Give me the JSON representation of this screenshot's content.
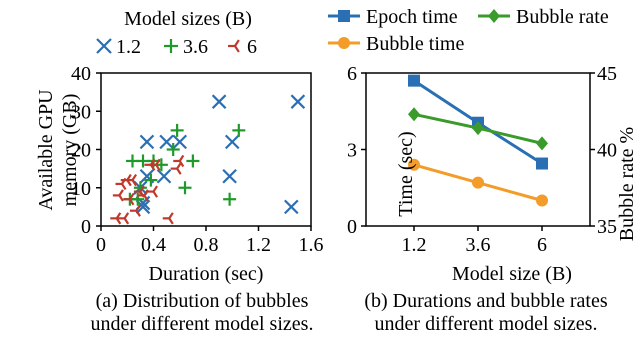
{
  "chart_data": [
    {
      "type": "scatter",
      "xlabel": "Duration (sec)",
      "ylabel": "Available GPU memory (GB)",
      "xlim": [
        0,
        1.6
      ],
      "ylim": [
        0,
        40
      ],
      "xticks": [
        "0",
        "0.4",
        "0.8",
        "1.2",
        "1.6"
      ],
      "yticks": [
        "0",
        "10",
        "20",
        "30",
        "40"
      ],
      "legend_title": "Model sizes (B)",
      "legend_position": "top",
      "series": [
        {
          "name": "1.2",
          "marker": "x",
          "color": "#2a6fb4",
          "points": [
            [
              0.32,
              5
            ],
            [
              0.32,
              6
            ],
            [
              0.35,
              13
            ],
            [
              0.35,
              22
            ],
            [
              0.3,
              10
            ],
            [
              0.48,
              13
            ],
            [
              0.5,
              22
            ],
            [
              0.6,
              22
            ],
            [
              0.9,
              32.5
            ],
            [
              0.98,
              13
            ],
            [
              1.0,
              22
            ],
            [
              1.45,
              5
            ],
            [
              1.5,
              32.5
            ]
          ]
        },
        {
          "name": "3.6",
          "marker": "plus",
          "color": "#1f9a2a",
          "points": [
            [
              0.22,
              7
            ],
            [
              0.24,
              17
            ],
            [
              0.28,
              7
            ],
            [
              0.3,
              10
            ],
            [
              0.32,
              17
            ],
            [
              0.38,
              12
            ],
            [
              0.4,
              17
            ],
            [
              0.46,
              16
            ],
            [
              0.55,
              20
            ],
            [
              0.58,
              25
            ],
            [
              0.64,
              10
            ],
            [
              0.7,
              17
            ],
            [
              0.98,
              7
            ],
            [
              1.05,
              25
            ]
          ]
        },
        {
          "name": "6",
          "marker": "tri_left",
          "color": "#c0392b",
          "points": [
            [
              0.12,
              2
            ],
            [
              0.14,
              8
            ],
            [
              0.16,
              11
            ],
            [
              0.18,
              2
            ],
            [
              0.2,
              12
            ],
            [
              0.22,
              7
            ],
            [
              0.24,
              12
            ],
            [
              0.27,
              4
            ],
            [
              0.3,
              9
            ],
            [
              0.33,
              8
            ],
            [
              0.38,
              16
            ],
            [
              0.4,
              9
            ],
            [
              0.42,
              16
            ],
            [
              0.52,
              2
            ],
            [
              0.58,
              15
            ],
            [
              0.6,
              17
            ]
          ]
        }
      ]
    },
    {
      "type": "line",
      "xlabel": "Model size (B)",
      "ylabel": "Time (sec)",
      "ylabel_right": "Bubble rate %",
      "categories": [
        "1.2",
        "3.6",
        "6"
      ],
      "ylim": [
        0,
        6
      ],
      "yticks": [
        "0",
        "3",
        "6"
      ],
      "ylim_right": [
        35,
        45
      ],
      "yticks_right": [
        "35",
        "40",
        "45"
      ],
      "legend_position": "top",
      "series": [
        {
          "name": "Epoch time",
          "axis": "left",
          "marker": "square",
          "color": "#2a6fb4",
          "values": [
            5.7,
            4.05,
            2.45
          ]
        },
        {
          "name": "Bubble rate",
          "axis": "right",
          "marker": "diamond",
          "color": "#3a9a2a",
          "values": [
            42.3,
            41.4,
            40.4
          ]
        },
        {
          "name": "Bubble time",
          "axis": "left",
          "marker": "circle",
          "color": "#f39c29",
          "values": [
            2.4,
            1.7,
            1.0
          ]
        }
      ]
    }
  ],
  "captions": {
    "a_line1": "(a) Distribution of bubbles",
    "a_line2": "under different model sizes.",
    "b_line1": "(b) Durations and bubble rates",
    "b_line2": "under different model sizes."
  }
}
